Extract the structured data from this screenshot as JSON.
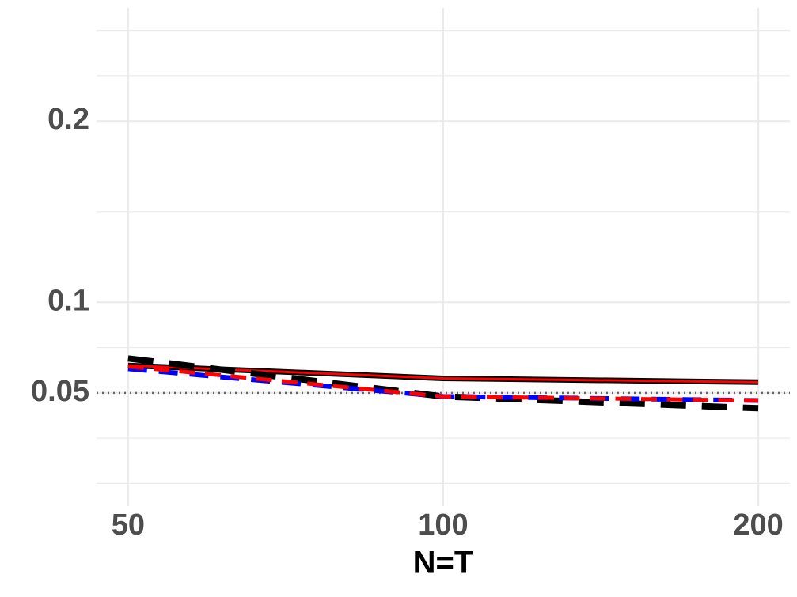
{
  "chart_data": {
    "type": "line",
    "x_label": "N=T",
    "x": [
      50,
      100,
      200
    ],
    "series": [
      {
        "color": "#000000",
        "dash": "solid",
        "width": 7,
        "values": [
          0.0651,
          0.058,
          0.0559
        ]
      },
      {
        "color": "#ff0000",
        "dash": "solid",
        "width": 3,
        "values": [
          0.0651,
          0.058,
          0.0559
        ]
      },
      {
        "color": "#000000",
        "dash": "dashed",
        "width": 8,
        "values": [
          0.069,
          0.048,
          0.0415
        ]
      },
      {
        "color": "#0000ff",
        "dash": "dashed",
        "width": 6,
        "values": [
          0.0633,
          0.048,
          0.0458
        ]
      },
      {
        "color": "#ff0000",
        "dash": "dashed",
        "width": 5,
        "values": [
          0.0646,
          0.048,
          0.0458
        ]
      }
    ],
    "xlog": true,
    "xlim": [
      46.65,
      214.4
    ],
    "xticks": [
      50,
      100,
      200
    ],
    "ylim": [
      -0.0125,
      0.2625
    ],
    "yticks": [
      0.05,
      0.1,
      0.2
    ],
    "minor_yticks": [
      0,
      0.025,
      0.075,
      0.15,
      0.225,
      0.25
    ],
    "reference_line": 0.05,
    "grid": true
  }
}
